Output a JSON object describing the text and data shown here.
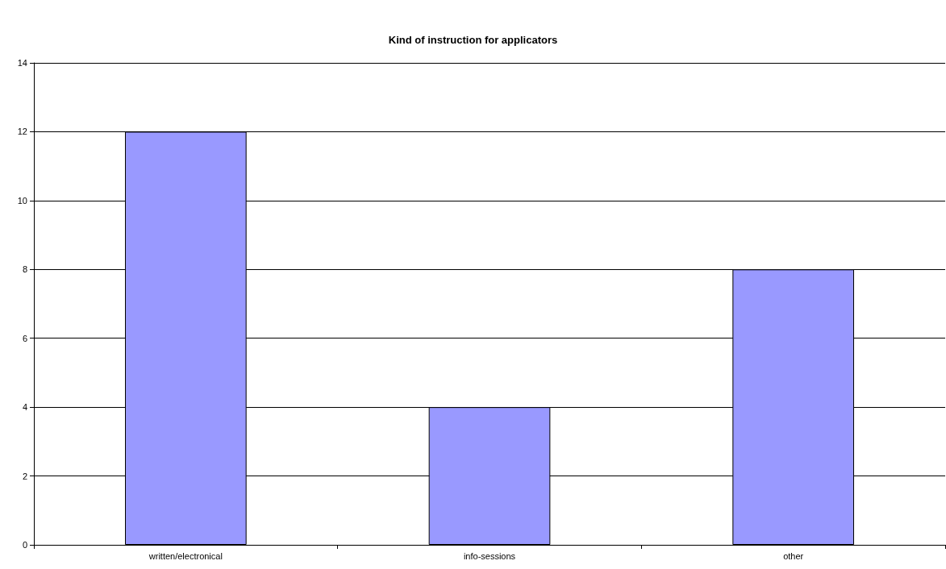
{
  "chart_data": {
    "type": "bar",
    "title": "Kind of instruction for applicators",
    "categories": [
      "written/electronical",
      "info-sessions",
      "other"
    ],
    "values": [
      12,
      4,
      8
    ],
    "color": "#9999ff",
    "ylim": [
      0,
      14
    ],
    "yticks": [
      0,
      2,
      4,
      6,
      8,
      10,
      12,
      14
    ],
    "grid": "y"
  }
}
